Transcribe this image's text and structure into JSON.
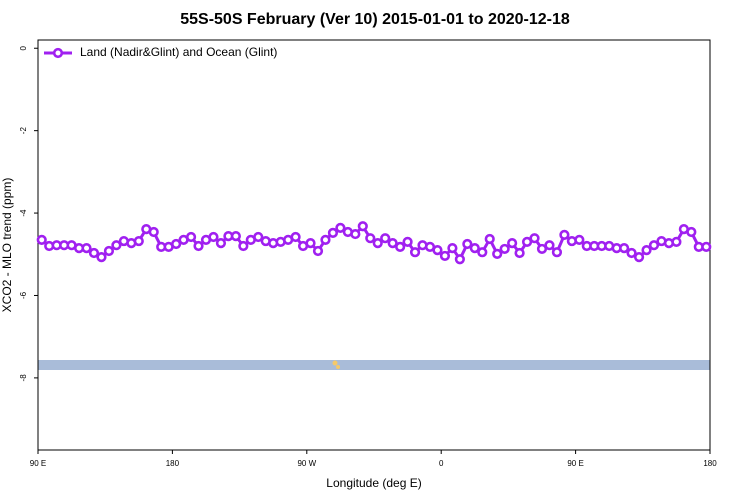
{
  "chart_data": {
    "type": "line",
    "title": "55S-50S February (Ver 10)   2015-01-01 to 2020-12-18",
    "x_label": "Longitude (deg E)",
    "y_label": "XCO2 - MLO trend (ppm)",
    "x": [
      92.5,
      97.5,
      102.5,
      107.5,
      112.5,
      117.5,
      122.5,
      127.5,
      132.5,
      137.5,
      142.5,
      147.5,
      152.5,
      157.5,
      162.5,
      167.5,
      172.5,
      177.5,
      182.5,
      187.5,
      192.5,
      197.5,
      202.5,
      207.5,
      212.5,
      217.5,
      222.5,
      227.5,
      232.5,
      237.5,
      242.5,
      247.5,
      252.5,
      257.5,
      262.5,
      267.5,
      272.5,
      277.5,
      282.5,
      287.5,
      292.5,
      297.5,
      302.5,
      307.5,
      312.5,
      317.5,
      322.5,
      327.5,
      332.5,
      337.5,
      342.5,
      347.5,
      352.5,
      357.5,
      362.5,
      367.5,
      372.5,
      377.5,
      382.5,
      387.5,
      392.5,
      397.5,
      402.5,
      407.5,
      412.5,
      417.5,
      422.5,
      427.5,
      432.5,
      437.5,
      442.5,
      447.5,
      452.5,
      457.5,
      462.5,
      467.5,
      472.5,
      477.5,
      482.5,
      487.5,
      492.5,
      497.5,
      502.5,
      507.5,
      512.5,
      517.5,
      522.5,
      527.5,
      532.5,
      537.5
    ],
    "series": [
      {
        "name": "Land (Nadir&Glint) and Ocean (Glint)",
        "color": "#a020f0",
        "values": [
          -4.65,
          -4.8,
          -4.78,
          -4.78,
          -4.78,
          -4.85,
          -4.85,
          -4.97,
          -5.07,
          -4.92,
          -4.78,
          -4.68,
          -4.73,
          -4.68,
          -4.39,
          -4.46,
          -4.82,
          -4.82,
          -4.75,
          -4.65,
          -4.58,
          -4.8,
          -4.65,
          -4.58,
          -4.73,
          -4.56,
          -4.56,
          -4.8,
          -4.65,
          -4.58,
          -4.68,
          -4.73,
          -4.7,
          -4.65,
          -4.58,
          -4.8,
          -4.73,
          -4.92,
          -4.65,
          -4.48,
          -4.36,
          -4.46,
          -4.51,
          -4.32,
          -4.61,
          -4.73,
          -4.61,
          -4.73,
          -4.82,
          -4.7,
          -4.95,
          -4.78,
          -4.82,
          -4.9,
          -5.04,
          -4.85,
          -5.12,
          -4.75,
          -4.85,
          -4.95,
          -4.63,
          -4.99,
          -4.87,
          -4.73,
          -4.97,
          -4.7,
          -4.61,
          -4.87,
          -4.78,
          -4.95,
          -4.53,
          -4.68,
          -4.65,
          -4.8,
          -4.8,
          -4.8,
          -4.8,
          -4.85,
          -4.85,
          -4.97,
          -5.07,
          -4.9,
          -4.78,
          -4.68,
          -4.73,
          -4.7,
          -4.39,
          -4.46,
          -4.82,
          -4.82
        ]
      }
    ],
    "xlim": [
      90,
      540
    ],
    "xticks": [
      {
        "value": 90,
        "label": "90 E"
      },
      180,
      {
        "value": 270,
        "label": "90 W"
      },
      {
        "value": 360,
        "label": "0"
      },
      {
        "value": 450,
        "label": "90 E"
      },
      {
        "value": 540,
        "label": "180"
      }
    ],
    "ylim": [
      -9.75,
      0.2
    ],
    "yticks": [
      0,
      -2,
      -4,
      -6,
      -8
    ],
    "legend": "top-left"
  }
}
